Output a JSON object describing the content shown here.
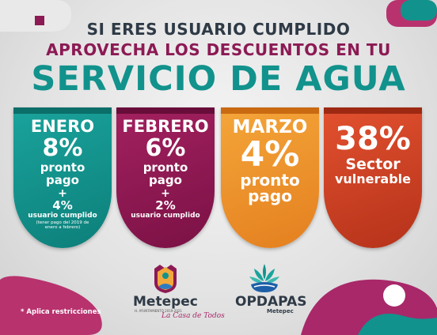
{
  "header": {
    "line1": "SI ERES USUARIO CUMPLIDO",
    "line2": "APROVECHA LOS DESCUENTOS EN TU",
    "line3": "SERVICIO DE AGUA"
  },
  "cards": [
    {
      "month": "ENERO",
      "discount": "8%",
      "discount_label": "pronto pago",
      "plus": "+",
      "extra_discount": "4%",
      "extra_label": "usuario cumplido",
      "note": "(tener pago del 2019 de enero a febrero)",
      "color": "#12928c"
    },
    {
      "month": "FEBRERO",
      "discount": "6%",
      "discount_label": "pronto pago",
      "plus": "+",
      "extra_discount": "2%",
      "extra_label": "usuario cumplido",
      "color": "#8c1a54"
    },
    {
      "month": "MARZO",
      "discount": "4%",
      "discount_label": "pronto pago",
      "color": "#ee9630"
    },
    {
      "discount": "38%",
      "discount_label": "Sector",
      "extra_label": "vulnerable",
      "color": "#c9401f"
    }
  ],
  "footer": {
    "restriction": "* Aplica restricciones",
    "metepec": {
      "name": "Metepec",
      "tagline": "H. AYUNTAMIENTO 2019-2021",
      "slogan": "La Casa de Todos"
    },
    "opdapas": {
      "name": "OPDAPAS",
      "subtitle": "Metepec"
    }
  },
  "colors": {
    "teal": "#12928c",
    "magenta": "#8c1a54",
    "orange": "#ee9630",
    "red": "#c9401f",
    "dark": "#2e3a46"
  }
}
